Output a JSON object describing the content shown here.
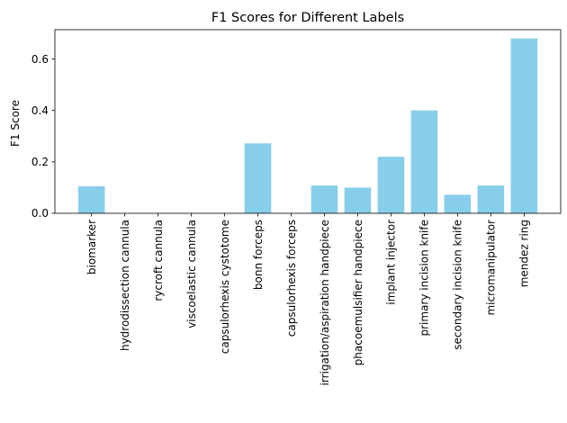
{
  "chart_data": {
    "type": "bar",
    "title": "F1 Scores for Different Labels",
    "xlabel": "",
    "ylabel": "F1 Score",
    "categories": [
      "biomarker",
      "hydrodissection cannula",
      "rycroft cannula",
      "viscoelastic cannula",
      "capsulorhexis cystotome",
      "bonn forceps",
      "capsulorhexis forceps",
      "irrigation/aspiration handpiece",
      "phacoemulsifier handpiece",
      "implant injector",
      "primary incision knife",
      "secondary incision knife",
      "micromanipulator",
      "mendez ring"
    ],
    "values": [
      0.105,
      0,
      0,
      0,
      0,
      0.272,
      0,
      0.108,
      0.1,
      0.22,
      0.4,
      0.072,
      0.108,
      0.68
    ],
    "ylim": [
      0,
      0.714
    ],
    "yticks": [
      0.0,
      0.2,
      0.4,
      0.6
    ],
    "ytick_labels": [
      "0.0",
      "0.2",
      "0.4",
      "0.6"
    ],
    "bar_color": "#87ceeb",
    "grid": false,
    "legend": "none"
  }
}
